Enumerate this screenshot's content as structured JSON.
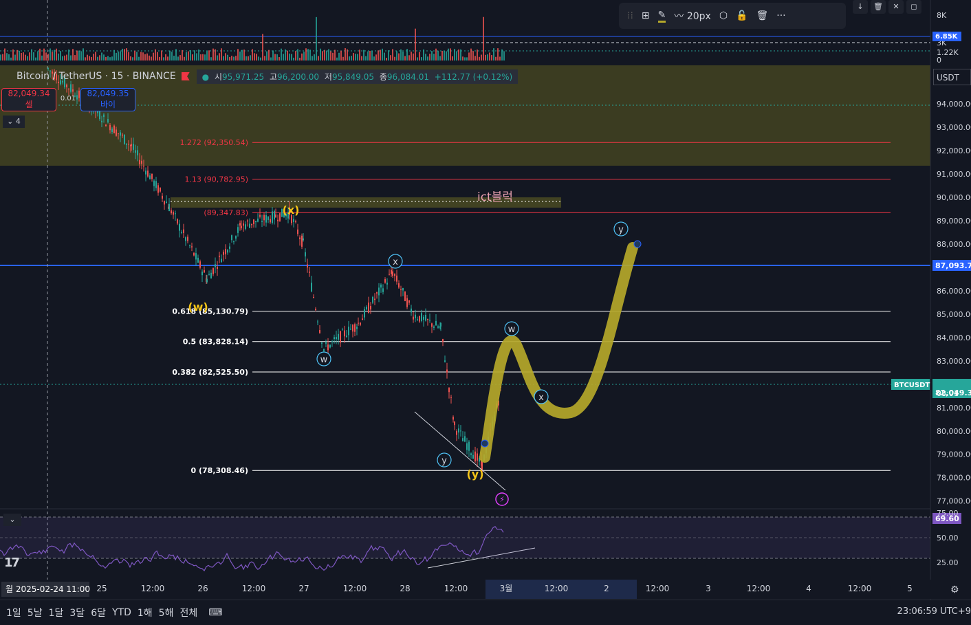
{
  "header": {
    "symbol": "Bitcoin / TetherUS · 15 · BINANCE",
    "open_label": "시",
    "open": "95,971.25",
    "high_label": "고",
    "high": "96,200.00",
    "low_label": "저",
    "low": "95,849.05",
    "close_label": "종",
    "close": "96,084.01",
    "change": "+112.77 (+0.12%)"
  },
  "trade": {
    "sell_price": "82,049.34",
    "sell_label": "셀",
    "buy_price": "82,049.35",
    "buy_label": "바이",
    "spread": "0.01",
    "collapse_count": "4"
  },
  "toolbar": {
    "width_label": "20px"
  },
  "price_axis": {
    "currency": "USDT",
    "ticks": [
      "94,000.00",
      "93,000.00",
      "92,000.00",
      "91,000.00",
      "90,000.00",
      "89,000.00",
      "88,000.00",
      "86,000.00",
      "85,000.00",
      "84,000.00",
      "83,000.00",
      "81,000.00",
      "80,000.00",
      "79,000.00",
      "78,000.00",
      "77,000.00"
    ],
    "current_line_label": "87,093.77",
    "last_price": "82,049.34",
    "countdown": "08:01",
    "symbol_tag": "BTCUSDT"
  },
  "volume_axis": {
    "ticks": [
      "8K",
      "3K",
      "1.22K",
      "0"
    ],
    "top_label": "6.85K"
  },
  "rsi_axis": {
    "ticks": [
      "75.00",
      "50.00",
      "25.00"
    ],
    "value": "69.60"
  },
  "time_axis": {
    "labels": [
      "25",
      "12:00",
      "26",
      "12:00",
      "27",
      "12:00",
      "28",
      "12:00",
      "3월",
      "12:00",
      "2",
      "12:00",
      "3",
      "12:00",
      "4",
      "12:00",
      "5"
    ],
    "cursor_label": "월 2025-02-24   11:00"
  },
  "fib_levels": [
    {
      "label": "1.272 (92,350.54)",
      "price": 92350.54,
      "color": "#f23645"
    },
    {
      "label": "1.13 (90,782.95)",
      "price": 90782.95,
      "color": "#f23645"
    },
    {
      "label": "(89,347.83)",
      "price": 89347.83,
      "color": "#f23645"
    },
    {
      "label": "0.618 (85,130.79)",
      "price": 85130.79,
      "color": "#ffffff"
    },
    {
      "label": "0.5 (83,828.14)",
      "price": 83828.14,
      "color": "#ffffff"
    },
    {
      "label": "0.382 (82,525.50)",
      "price": 82525.5,
      "color": "#ffffff"
    },
    {
      "label": "0 (78,308.46)",
      "price": 78308.46,
      "color": "#ffffff"
    }
  ],
  "annotations": {
    "ict_block": "ict블럭",
    "wave_labels": [
      "(w)",
      "(x)",
      "(y)",
      "w",
      "x",
      "y",
      "w",
      "x",
      "y"
    ]
  },
  "chart_data": {
    "type": "line",
    "x": [
      "02-24 11:00",
      "02-24 18:00",
      "02-25 00:00",
      "02-25 12:00",
      "02-26 00:00",
      "02-26 06:00",
      "02-26 12:00",
      "02-26 18:00",
      "02-27 00:00",
      "02-27 06:00",
      "02-27 12:00",
      "02-27 18:00",
      "02-28 00:00",
      "02-28 06:00",
      "02-28 12:00",
      "02-28 18:00",
      "03-01 00:00"
    ],
    "series": [
      {
        "values": [
          95500,
          93800,
          92200,
          89600,
          86500,
          88800,
          89200,
          89347,
          88000,
          83500,
          84600,
          86800,
          85000,
          84400,
          80200,
          78500,
          82049
        ]
      }
    ],
    "ylim": [
      76500,
      95500
    ],
    "projection_path": [
      [
        "03-01 00:00",
        78900
      ],
      [
        "03-01 06:00",
        83800
      ],
      [
        "03-01 12:00",
        81200
      ],
      [
        "03-01 18:00",
        80800
      ],
      [
        "03-02 00:00",
        84800
      ],
      [
        "03-02 06:00",
        88000
      ]
    ]
  }
}
